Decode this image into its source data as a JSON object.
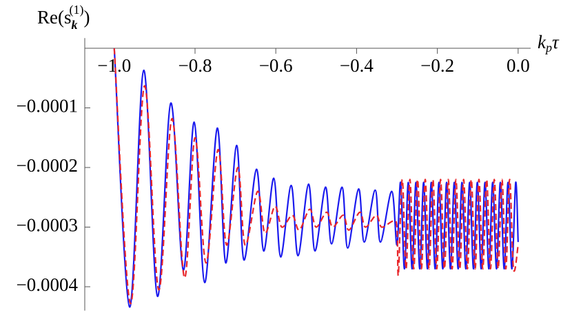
{
  "chart_data": {
    "type": "line",
    "x_label": [
      "k",
      "p",
      "τ"
    ],
    "y_label": [
      "Re(s",
      "k",
      "(1)",
      ")"
    ],
    "xlim": [
      -1.073,
      0.031
    ],
    "ylim": [
      -0.00044,
      1.7e-05
    ],
    "xticks": [
      {
        "value": -1.0,
        "label": "−1.0"
      },
      {
        "value": -0.8,
        "label": "−0.8"
      },
      {
        "value": -0.6,
        "label": "−0.6"
      },
      {
        "value": -0.4,
        "label": "−0.4"
      },
      {
        "value": -0.2,
        "label": "−0.2"
      },
      {
        "value": 0.0,
        "label": "0.0"
      }
    ],
    "yticks": [
      {
        "value": -0.0001,
        "label": "−0.0001"
      },
      {
        "value": -0.0002,
        "label": "−0.0002"
      },
      {
        "value": -0.0003,
        "label": "−0.0003"
      },
      {
        "value": -0.0004,
        "label": "−0.0004"
      }
    ],
    "series": [
      {
        "color": "#1a1aee",
        "style": "solid",
        "x": [
          -1.0,
          -0.962,
          -0.927,
          -0.893,
          -0.86,
          -0.829,
          -0.802,
          -0.776,
          -0.745,
          -0.724,
          -0.697,
          -0.679,
          -0.648,
          -0.63,
          -0.605,
          -0.588,
          -0.562,
          -0.545,
          -0.519,
          -0.503,
          -0.477,
          -0.462,
          -0.436,
          -0.422,
          -0.395,
          -0.381,
          -0.354,
          -0.341,
          -0.313,
          -0.3,
          -0.291,
          -0.2815,
          -0.272,
          -0.2625,
          -0.253,
          -0.2435,
          -0.234,
          -0.2245,
          -0.215,
          -0.2055,
          -0.196,
          -0.1865,
          -0.177,
          -0.1675,
          -0.158,
          -0.1485,
          -0.139,
          -0.1295,
          -0.12,
          -0.1105,
          -0.101,
          -0.0915,
          -0.082,
          -0.0725,
          -0.063,
          -0.0535,
          -0.044,
          -0.0345,
          -0.025,
          -0.0155,
          -0.006,
          0.0
        ],
        "values": [
          0.0,
          -0.000434,
          -3.7e-05,
          -0.000416,
          -9.2e-05,
          -0.000372,
          -0.000124,
          -0.000393,
          -0.000134,
          -0.00036,
          -0.000163,
          -0.000355,
          -0.000203,
          -0.00034,
          -0.000218,
          -0.00035,
          -0.00023,
          -0.000348,
          -0.000228,
          -0.00034,
          -0.000233,
          -0.000328,
          -0.000233,
          -0.000335,
          -0.000236,
          -0.000325,
          -0.000238,
          -0.000325,
          -0.00024,
          -0.00033,
          -0.000225,
          -0.00037,
          -0.000225,
          -0.00037,
          -0.000225,
          -0.00037,
          -0.000225,
          -0.00037,
          -0.000225,
          -0.00037,
          -0.000225,
          -0.00037,
          -0.000225,
          -0.00037,
          -0.000225,
          -0.00037,
          -0.000225,
          -0.00037,
          -0.000225,
          -0.00037,
          -0.000225,
          -0.00037,
          -0.000225,
          -0.00037,
          -0.000225,
          -0.00037,
          -0.000225,
          -0.00037,
          -0.000225,
          -0.00037,
          -0.000225,
          -0.000325
        ]
      },
      {
        "color": "#e8262a",
        "style": "dashed",
        "x": [
          -1.0,
          -0.96,
          -0.925,
          -0.89,
          -0.857,
          -0.826,
          -0.8,
          -0.773,
          -0.743,
          -0.722,
          -0.694,
          -0.676,
          -0.645,
          -0.627,
          -0.602,
          -0.585,
          -0.559,
          -0.542,
          -0.516,
          -0.5,
          -0.474,
          -0.459,
          -0.433,
          -0.419,
          -0.392,
          -0.378,
          -0.351,
          -0.338,
          -0.31,
          -0.3,
          -0.2965,
          -0.287,
          -0.2775,
          -0.268,
          -0.2585,
          -0.249,
          -0.2395,
          -0.23,
          -0.2205,
          -0.211,
          -0.2015,
          -0.192,
          -0.1825,
          -0.173,
          -0.1635,
          -0.154,
          -0.1445,
          -0.135,
          -0.1255,
          -0.116,
          -0.1065,
          -0.097,
          -0.0875,
          -0.078,
          -0.0685,
          -0.059,
          -0.0495,
          -0.04,
          -0.0305,
          -0.021,
          -0.0115,
          0.0
        ],
        "values": [
          0.0,
          -0.000428,
          -6.3e-05,
          -0.000405,
          -0.000118,
          -0.000385,
          -0.00015,
          -0.00036,
          -0.00017,
          -0.00033,
          -0.0002,
          -0.00033,
          -0.00024,
          -0.00031,
          -0.000265,
          -0.0003,
          -0.00028,
          -0.000305,
          -0.00027,
          -0.0003,
          -0.000275,
          -0.0003,
          -0.00028,
          -0.000305,
          -0.000275,
          -0.0003,
          -0.00028,
          -0.0003,
          -0.00029,
          -0.0003,
          -0.00038,
          -0.00022,
          -0.00037,
          -0.00022,
          -0.00037,
          -0.00022,
          -0.00037,
          -0.00022,
          -0.00037,
          -0.00022,
          -0.00037,
          -0.00022,
          -0.00037,
          -0.00022,
          -0.00037,
          -0.00022,
          -0.00037,
          -0.00022,
          -0.00037,
          -0.00022,
          -0.00037,
          -0.00022,
          -0.00037,
          -0.00022,
          -0.00037,
          -0.00022,
          -0.00037,
          -0.00022,
          -0.00037,
          -0.00022,
          -0.00037,
          -0.00033
        ]
      }
    ]
  }
}
